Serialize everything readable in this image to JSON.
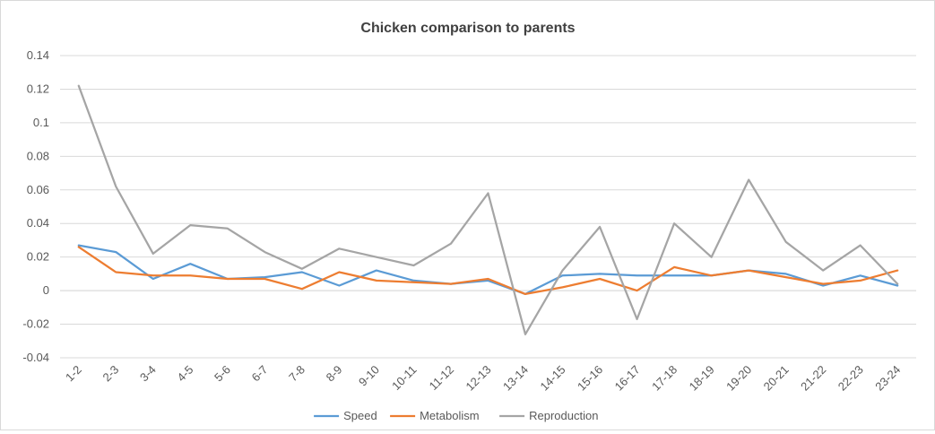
{
  "chart_data": {
    "type": "line",
    "title": "Chicken comparison to parents",
    "xlabel": "",
    "ylabel": "",
    "categories": [
      "1-2",
      "2-3",
      "3-4",
      "4-5",
      "5-6",
      "6-7",
      "7-8",
      "8-9",
      "9-10",
      "10-11",
      "11-12",
      "12-13",
      "13-14",
      "14-15",
      "15-16",
      "16-17",
      "17-18",
      "18-19",
      "19-20",
      "20-21",
      "21-22",
      "22-23",
      "23-24"
    ],
    "ylim": [
      -0.04,
      0.14
    ],
    "yticks": [
      -0.04,
      -0.02,
      0,
      0.02,
      0.04,
      0.06,
      0.08,
      0.1,
      0.12,
      0.14
    ],
    "ytick_labels": [
      "-0.04",
      "-0.02",
      "0",
      "0.02",
      "0.04",
      "0.06",
      "0.08",
      "0.1",
      "0.12",
      "0.14"
    ],
    "grid": true,
    "legend_position": "bottom",
    "series": [
      {
        "name": "Speed",
        "color": "#5B9BD5",
        "values": [
          0.027,
          0.023,
          0.007,
          0.016,
          0.007,
          0.008,
          0.011,
          0.003,
          0.012,
          0.006,
          0.004,
          0.006,
          -0.002,
          0.009,
          0.01,
          0.009,
          0.009,
          0.009,
          0.012,
          0.01,
          0.003,
          0.009,
          0.003
        ]
      },
      {
        "name": "Metabolism",
        "color": "#ED7D31",
        "values": [
          0.026,
          0.011,
          0.009,
          0.009,
          0.007,
          0.007,
          0.001,
          0.011,
          0.006,
          0.005,
          0.004,
          0.007,
          -0.002,
          0.002,
          0.007,
          0.0,
          0.014,
          0.009,
          0.012,
          0.008,
          0.004,
          0.006,
          0.012
        ]
      },
      {
        "name": "Reproduction",
        "color": "#A5A5A5",
        "values": [
          0.122,
          0.062,
          0.022,
          0.039,
          0.037,
          0.023,
          0.013,
          0.025,
          0.02,
          0.015,
          0.028,
          0.058,
          -0.026,
          0.012,
          0.038,
          -0.017,
          0.04,
          0.02,
          0.066,
          0.029,
          0.012,
          0.027,
          0.004
        ]
      }
    ]
  }
}
